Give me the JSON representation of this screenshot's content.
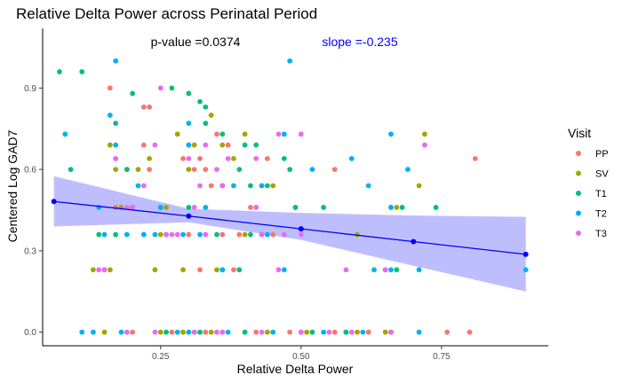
{
  "chart_data": {
    "type": "scatter",
    "title": "Relative Delta Power across  Perinatal Period",
    "xlabel": "Relative Delta Power",
    "ylabel": "Centered Log GAD7",
    "xlim": [
      0.04,
      0.94
    ],
    "ylim": [
      -0.05,
      1.12
    ],
    "x_ticks": [
      "0.25",
      "0.50",
      "0.75"
    ],
    "x_tick_values": [
      0.25,
      0.5,
      0.75
    ],
    "y_ticks": [
      "0.0",
      "0.3",
      "0.6",
      "0.9"
    ],
    "y_tick_values": [
      0.0,
      0.3,
      0.6,
      0.9
    ],
    "annotations": {
      "pvalue": "p-value =0.0374",
      "slope": "slope =-0.235",
      "slope_color": "#0000ff"
    },
    "legend": {
      "title": "Visit",
      "position": "right"
    },
    "fit_line": {
      "color": "#0000ff",
      "band_color": "#b3b3ff",
      "points": [
        [
          0.06,
          0.482
        ],
        [
          0.3,
          0.428
        ],
        [
          0.5,
          0.381
        ],
        [
          0.7,
          0.334
        ],
        [
          0.9,
          0.287
        ]
      ],
      "band_lower": [
        [
          0.06,
          0.39
        ],
        [
          0.3,
          0.405
        ],
        [
          0.5,
          0.34
        ],
        [
          0.7,
          0.245
        ],
        [
          0.9,
          0.15
        ]
      ],
      "band_upper": [
        [
          0.06,
          0.575
        ],
        [
          0.3,
          0.455
        ],
        [
          0.5,
          0.44
        ],
        [
          0.7,
          0.43
        ],
        [
          0.9,
          0.425
        ]
      ]
    },
    "series": [
      {
        "name": "PP",
        "color": "#f8766d",
        "points": [
          [
            0.16,
            0.9
          ],
          [
            0.22,
            0.83
          ],
          [
            0.23,
            0.83
          ],
          [
            0.17,
            0.64
          ],
          [
            0.19,
            0.6
          ],
          [
            0.22,
            0.69
          ],
          [
            0.23,
            0.6
          ],
          [
            0.25,
            0.46
          ],
          [
            0.29,
            0.64
          ],
          [
            0.3,
            0.69
          ],
          [
            0.31,
            0.6
          ],
          [
            0.32,
            0.64
          ],
          [
            0.33,
            0.6
          ],
          [
            0.34,
            0.54
          ],
          [
            0.35,
            0.73
          ],
          [
            0.37,
            0.69
          ],
          [
            0.41,
            0.46
          ],
          [
            0.42,
            0.46
          ],
          [
            0.44,
            0.64
          ],
          [
            0.45,
            0.36
          ],
          [
            0.56,
            0.6
          ],
          [
            0.66,
            0.46
          ],
          [
            0.81,
            0.64
          ],
          [
            0.15,
            0.23
          ],
          [
            0.17,
            0.46
          ],
          [
            0.3,
            0.36
          ],
          [
            0.36,
            0.36
          ],
          [
            0.32,
            0.23
          ],
          [
            0.38,
            0.23
          ],
          [
            0.27,
            0.0
          ],
          [
            0.33,
            0.0
          ],
          [
            0.42,
            0.0
          ],
          [
            0.48,
            0.0
          ],
          [
            0.56,
            0.0
          ],
          [
            0.62,
            0.0
          ],
          [
            0.66,
            0.0
          ],
          [
            0.76,
            0.0
          ],
          [
            0.8,
            0.0
          ],
          [
            0.2,
            0.0
          ],
          [
            0.5,
            0.0
          ],
          [
            0.39,
            0.36
          ]
        ]
      },
      {
        "name": "SV",
        "color": "#a3a500",
        "points": [
          [
            0.16,
            0.69
          ],
          [
            0.17,
            0.6
          ],
          [
            0.18,
            0.46
          ],
          [
            0.21,
            0.6
          ],
          [
            0.23,
            0.64
          ],
          [
            0.26,
            0.46
          ],
          [
            0.28,
            0.73
          ],
          [
            0.3,
            0.6
          ],
          [
            0.31,
            0.69
          ],
          [
            0.34,
            0.8
          ],
          [
            0.36,
            0.69
          ],
          [
            0.36,
            0.54
          ],
          [
            0.38,
            0.64
          ],
          [
            0.4,
            0.73
          ],
          [
            0.43,
            0.54
          ],
          [
            0.45,
            0.54
          ],
          [
            0.49,
            0.46
          ],
          [
            0.6,
            0.36
          ],
          [
            0.72,
            0.73
          ],
          [
            0.71,
            0.54
          ],
          [
            0.67,
            0.46
          ],
          [
            0.13,
            0.23
          ],
          [
            0.16,
            0.23
          ],
          [
            0.24,
            0.23
          ],
          [
            0.29,
            0.23
          ],
          [
            0.35,
            0.23
          ],
          [
            0.4,
            0.36
          ],
          [
            0.43,
            0.36
          ],
          [
            0.25,
            0.36
          ],
          [
            0.15,
            0.0
          ],
          [
            0.25,
            0.0
          ],
          [
            0.29,
            0.0
          ],
          [
            0.34,
            0.0
          ],
          [
            0.4,
            0.0
          ],
          [
            0.44,
            0.0
          ],
          [
            0.51,
            0.0
          ],
          [
            0.58,
            0.0
          ],
          [
            0.6,
            0.0
          ],
          [
            0.65,
            0.0
          ],
          [
            0.66,
            0.0
          ],
          [
            0.44,
            0.36
          ]
        ]
      },
      {
        "name": "T1",
        "color": "#00bf7d",
        "points": [
          [
            0.07,
            0.96
          ],
          [
            0.11,
            0.96
          ],
          [
            0.2,
            0.88
          ],
          [
            0.27,
            0.9
          ],
          [
            0.3,
            0.88
          ],
          [
            0.32,
            0.85
          ],
          [
            0.33,
            0.83
          ],
          [
            0.17,
            0.77
          ],
          [
            0.33,
            0.77
          ],
          [
            0.36,
            0.73
          ],
          [
            0.4,
            0.69
          ],
          [
            0.42,
            0.69
          ],
          [
            0.09,
            0.6
          ],
          [
            0.19,
            0.6
          ],
          [
            0.47,
            0.64
          ],
          [
            0.39,
            0.6
          ],
          [
            0.41,
            0.54
          ],
          [
            0.44,
            0.54
          ],
          [
            0.48,
            0.6
          ],
          [
            0.25,
            0.46
          ],
          [
            0.3,
            0.46
          ],
          [
            0.49,
            0.46
          ],
          [
            0.54,
            0.46
          ],
          [
            0.68,
            0.46
          ],
          [
            0.74,
            0.46
          ],
          [
            0.14,
            0.36
          ],
          [
            0.17,
            0.36
          ],
          [
            0.22,
            0.36
          ],
          [
            0.26,
            0.36
          ],
          [
            0.35,
            0.36
          ],
          [
            0.41,
            0.36
          ],
          [
            0.36,
            0.23
          ],
          [
            0.39,
            0.23
          ],
          [
            0.65,
            0.23
          ],
          [
            0.67,
            0.23
          ],
          [
            0.26,
            0.0
          ],
          [
            0.32,
            0.0
          ],
          [
            0.4,
            0.0
          ],
          [
            0.52,
            0.0
          ],
          [
            0.58,
            0.0
          ],
          [
            0.31,
            0.0
          ]
        ]
      },
      {
        "name": "T2",
        "color": "#00b0f6",
        "points": [
          [
            0.17,
            1.0
          ],
          [
            0.48,
            1.0
          ],
          [
            0.08,
            0.73
          ],
          [
            0.16,
            0.8
          ],
          [
            0.3,
            0.77
          ],
          [
            0.17,
            0.69
          ],
          [
            0.3,
            0.69
          ],
          [
            0.47,
            0.73
          ],
          [
            0.66,
            0.73
          ],
          [
            0.59,
            0.64
          ],
          [
            0.52,
            0.6
          ],
          [
            0.62,
            0.54
          ],
          [
            0.21,
            0.54
          ],
          [
            0.38,
            0.54
          ],
          [
            0.43,
            0.54
          ],
          [
            0.69,
            0.6
          ],
          [
            0.14,
            0.46
          ],
          [
            0.2,
            0.46
          ],
          [
            0.25,
            0.46
          ],
          [
            0.33,
            0.46
          ],
          [
            0.66,
            0.46
          ],
          [
            0.19,
            0.36
          ],
          [
            0.22,
            0.36
          ],
          [
            0.24,
            0.36
          ],
          [
            0.29,
            0.36
          ],
          [
            0.32,
            0.36
          ],
          [
            0.15,
            0.36
          ],
          [
            0.36,
            0.23
          ],
          [
            0.44,
            0.36
          ],
          [
            0.47,
            0.23
          ],
          [
            0.63,
            0.23
          ],
          [
            0.71,
            0.23
          ],
          [
            0.9,
            0.23
          ],
          [
            0.11,
            0.0
          ],
          [
            0.13,
            0.0
          ],
          [
            0.18,
            0.0
          ],
          [
            0.28,
            0.0
          ],
          [
            0.3,
            0.0
          ],
          [
            0.37,
            0.0
          ],
          [
            0.45,
            0.0
          ],
          [
            0.54,
            0.0
          ],
          [
            0.61,
            0.0
          ],
          [
            0.71,
            0.0
          ],
          [
            0.66,
            0.23
          ]
        ]
      },
      {
        "name": "T3",
        "color": "#e76bf3",
        "points": [
          [
            0.25,
            0.9
          ],
          [
            0.17,
            0.64
          ],
          [
            0.2,
            0.46
          ],
          [
            0.24,
            0.69
          ],
          [
            0.22,
            0.54
          ],
          [
            0.3,
            0.64
          ],
          [
            0.32,
            0.54
          ],
          [
            0.33,
            0.69
          ],
          [
            0.42,
            0.64
          ],
          [
            0.46,
            0.73
          ],
          [
            0.5,
            0.73
          ],
          [
            0.35,
            0.6
          ],
          [
            0.36,
            0.54
          ],
          [
            0.37,
            0.64
          ],
          [
            0.19,
            0.46
          ],
          [
            0.27,
            0.36
          ],
          [
            0.31,
            0.46
          ],
          [
            0.42,
            0.46
          ],
          [
            0.47,
            0.36
          ],
          [
            0.72,
            0.69
          ],
          [
            0.14,
            0.23
          ],
          [
            0.15,
            0.23
          ],
          [
            0.26,
            0.36
          ],
          [
            0.28,
            0.36
          ],
          [
            0.33,
            0.36
          ],
          [
            0.43,
            0.36
          ],
          [
            0.46,
            0.23
          ],
          [
            0.58,
            0.23
          ],
          [
            0.65,
            0.23
          ],
          [
            0.19,
            0.0
          ],
          [
            0.24,
            0.0
          ],
          [
            0.31,
            0.0
          ],
          [
            0.35,
            0.0
          ],
          [
            0.43,
            0.0
          ],
          [
            0.5,
            0.0
          ],
          [
            0.55,
            0.0
          ],
          [
            0.59,
            0.0
          ],
          [
            0.66,
            0.0
          ],
          [
            0.36,
            0.0
          ],
          [
            0.5,
            0.36
          ]
        ]
      }
    ]
  }
}
